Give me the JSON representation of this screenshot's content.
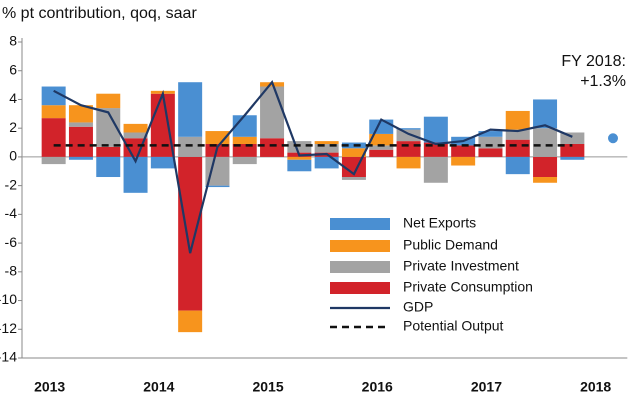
{
  "chart_data": {
    "type": "bar",
    "stacked": true,
    "y_axis_label": "% pt contribution, qoq, saar",
    "categories": [
      "2013",
      null,
      null,
      null,
      "2014",
      null,
      null,
      null,
      "2015",
      null,
      null,
      null,
      "2016",
      null,
      null,
      null,
      "2017",
      null,
      null,
      null,
      "2018"
    ],
    "series": [
      {
        "name": "Private Consumption",
        "color": "#d2232a",
        "values": [
          2.7,
          2.1,
          0.7,
          1.3,
          4.4,
          -10.7,
          0.9,
          0.9,
          1.3,
          0.3,
          0.3,
          -1.4,
          0.5,
          1.1,
          1.0,
          0.8,
          0.6,
          1.2,
          -1.4,
          0.9,
          null
        ]
      },
      {
        "name": "Private Investment",
        "color": "#a3a3a3",
        "values": [
          -0.5,
          0.3,
          2.7,
          0.4,
          0,
          1.4,
          -2.0,
          -0.5,
          3.6,
          0.8,
          0.6,
          -0.2,
          0.3,
          0.8,
          -1.8,
          0,
          0.8,
          0.7,
          2.0,
          0.8,
          null
        ]
      },
      {
        "name": "Public Demand",
        "color": "#f7941d",
        "values": [
          0.9,
          1.2,
          1.0,
          0.6,
          0.2,
          -1.5,
          0.9,
          0.5,
          0.3,
          -0.2,
          0.2,
          0.6,
          0.8,
          -0.8,
          0,
          -0.6,
          0,
          1.3,
          -0.4,
          0,
          null
        ]
      },
      {
        "name": "Net Exports",
        "color": "#4a8fd2",
        "values": [
          1.3,
          -0.2,
          -1.4,
          -2.5,
          -0.8,
          3.8,
          -0.1,
          1.5,
          0,
          -0.8,
          -0.8,
          0.4,
          1.0,
          0.1,
          1.8,
          0.6,
          0.4,
          -1.2,
          2.0,
          -0.2,
          null
        ]
      }
    ],
    "lines": [
      {
        "name": "GDP",
        "color": "#1f3864",
        "dashed": false,
        "values": [
          4.6,
          3.6,
          3.1,
          -0.3,
          4.4,
          -6.7,
          0.7,
          2.9,
          5.2,
          0.1,
          0.2,
          -1.2,
          2.6,
          1.6,
          0.9,
          1.1,
          1.9,
          1.8,
          2.2,
          1.4,
          null
        ]
      },
      {
        "name": "Potential Output",
        "color": "#111111",
        "dashed": true,
        "values": [
          0.8,
          0.8,
          0.8,
          0.8,
          0.8,
          0.8,
          0.8,
          0.8,
          0.8,
          0.8,
          0.8,
          0.8,
          0.8,
          0.8,
          0.8,
          0.8,
          0.8,
          0.8,
          0.8,
          0.8,
          null
        ]
      }
    ],
    "legend_order": [
      "Net Exports",
      "Public Demand",
      "Private Investment",
      "Private Consumption",
      "GDP",
      "Potential Output"
    ],
    "annotation": {
      "text": [
        "FY 2018:",
        "+1.3%"
      ],
      "value": 1.3,
      "color": "#4a8fd2"
    },
    "ylim": [
      -14,
      8
    ],
    "yticks": [
      8,
      6,
      4,
      2,
      0,
      -2,
      -4,
      -6,
      -8,
      -10,
      -12,
      -14
    ]
  }
}
